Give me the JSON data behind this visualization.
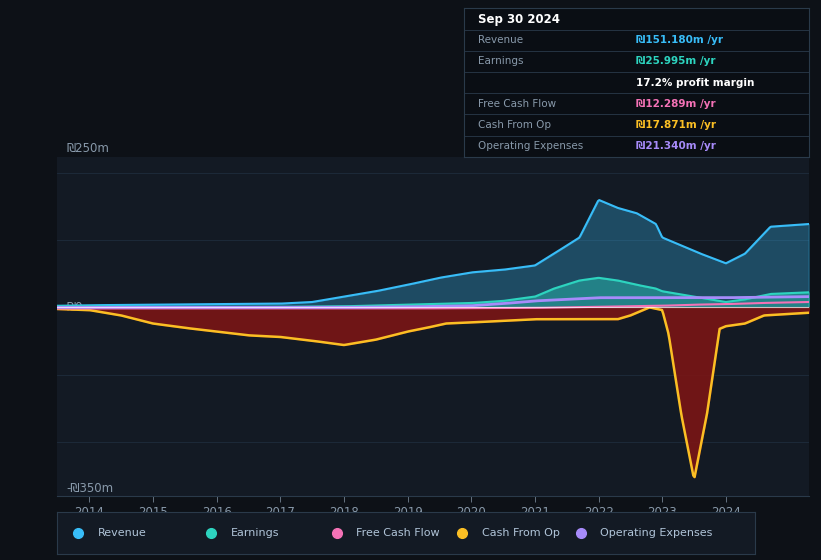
{
  "background_color": "#0d1117",
  "chart_bg": "#131a24",
  "info_bg": "#0a0e14",
  "legend_bg": "#131a24",
  "title": "Sep 30 2024",
  "table_rows": [
    {
      "label": "Revenue",
      "value": "₪151.180m /yr",
      "color": "#38bdf8"
    },
    {
      "label": "Earnings",
      "value": "₪25.995m /yr",
      "color": "#2dd4bf"
    },
    {
      "label": "",
      "value": "17.2% profit margin",
      "color": "#ffffff"
    },
    {
      "label": "Free Cash Flow",
      "value": "₪12.289m /yr",
      "color": "#f472b6"
    },
    {
      "label": "Cash From Op",
      "value": "₪17.871m /yr",
      "color": "#fbbf24"
    },
    {
      "label": "Operating Expenses",
      "value": "₪21.340m /yr",
      "color": "#a78bfa"
    }
  ],
  "ylabel_top": "₪250m",
  "ylabel_zero": "₪0",
  "ylabel_bot": "-₪350m",
  "ylim": [
    -350,
    280
  ],
  "xlim": [
    2013.5,
    2025.3
  ],
  "xticks": [
    2014,
    2015,
    2016,
    2017,
    2018,
    2019,
    2020,
    2021,
    2022,
    2023,
    2024
  ],
  "colors": {
    "revenue": "#38bdf8",
    "earnings": "#2dd4bf",
    "free_cash_flow": "#f472b6",
    "cash_from_op": "#fbbf24",
    "operating_expenses": "#a78bfa",
    "negative_fill": "#7a1515"
  },
  "legend_items": [
    {
      "label": "Revenue",
      "color": "#38bdf8"
    },
    {
      "label": "Earnings",
      "color": "#2dd4bf"
    },
    {
      "label": "Free Cash Flow",
      "color": "#f472b6"
    },
    {
      "label": "Cash From Op",
      "color": "#fbbf24"
    },
    {
      "label": "Operating Expenses",
      "color": "#a78bfa"
    }
  ],
  "revenue_t": [
    2013.5,
    2014,
    2015,
    2016,
    2017,
    2017.5,
    2018,
    2018.5,
    2019,
    2019.5,
    2020,
    2020.5,
    2021,
    2021.3,
    2021.7,
    2022.0,
    2022.3,
    2022.6,
    2022.9,
    2023.0,
    2023.3,
    2023.6,
    2024.0,
    2024.3,
    2024.7,
    2025.3
  ],
  "revenue_v": [
    3,
    4,
    5,
    6,
    7,
    10,
    20,
    30,
    42,
    55,
    65,
    70,
    78,
    100,
    130,
    200,
    185,
    175,
    155,
    130,
    115,
    100,
    82,
    100,
    150,
    155
  ],
  "earnings_t": [
    2013.5,
    2014,
    2015,
    2016,
    2017,
    2018,
    2019,
    2020,
    2020.5,
    2021,
    2021.3,
    2021.7,
    2022.0,
    2022.3,
    2022.6,
    2022.9,
    2023.0,
    2023.5,
    2024.0,
    2024.3,
    2024.7,
    2025.3
  ],
  "earnings_v": [
    2,
    2,
    1,
    1,
    1,
    2,
    5,
    8,
    12,
    20,
    35,
    50,
    55,
    50,
    42,
    35,
    30,
    20,
    10,
    15,
    25,
    28
  ],
  "fcf_t": [
    2013.5,
    2014,
    2015,
    2016,
    2017,
    2018,
    2019,
    2020,
    2021,
    2021.5,
    2022,
    2022.5,
    2023,
    2023.5,
    2024,
    2024.5,
    2025.3
  ],
  "fcf_v": [
    -2,
    -2,
    -2,
    -2,
    -2,
    -2,
    -2,
    -1.5,
    -1,
    0,
    1,
    2,
    3,
    5,
    6,
    8,
    10
  ],
  "cop_t": [
    2013.5,
    2014,
    2014.5,
    2015,
    2015.5,
    2016,
    2016.5,
    2017,
    2017.5,
    2018,
    2018.5,
    2019,
    2019.3,
    2019.6,
    2020,
    2020.5,
    2021,
    2021.5,
    2021.8,
    2022.0,
    2022.3,
    2022.5,
    2022.7,
    2022.8,
    2023.0,
    2023.1,
    2023.3,
    2023.5,
    2023.7,
    2023.9,
    2024.0,
    2024.3,
    2024.6,
    2025.3
  ],
  "cop_v": [
    -3,
    -5,
    -15,
    -30,
    -38,
    -45,
    -52,
    -55,
    -62,
    -70,
    -60,
    -45,
    -38,
    -30,
    -28,
    -25,
    -22,
    -22,
    -22,
    -22,
    -22,
    -15,
    -5,
    0,
    -5,
    -50,
    -200,
    -320,
    -200,
    -40,
    -35,
    -30,
    -15,
    -10
  ],
  "opex_t": [
    2013.5,
    2018,
    2019,
    2020,
    2020.5,
    2021,
    2021.5,
    2022,
    2022.5,
    2023,
    2023.5,
    2024,
    2025.3
  ],
  "opex_v": [
    0,
    0,
    1,
    3,
    7,
    12,
    15,
    18,
    18,
    18,
    18,
    18,
    20
  ]
}
